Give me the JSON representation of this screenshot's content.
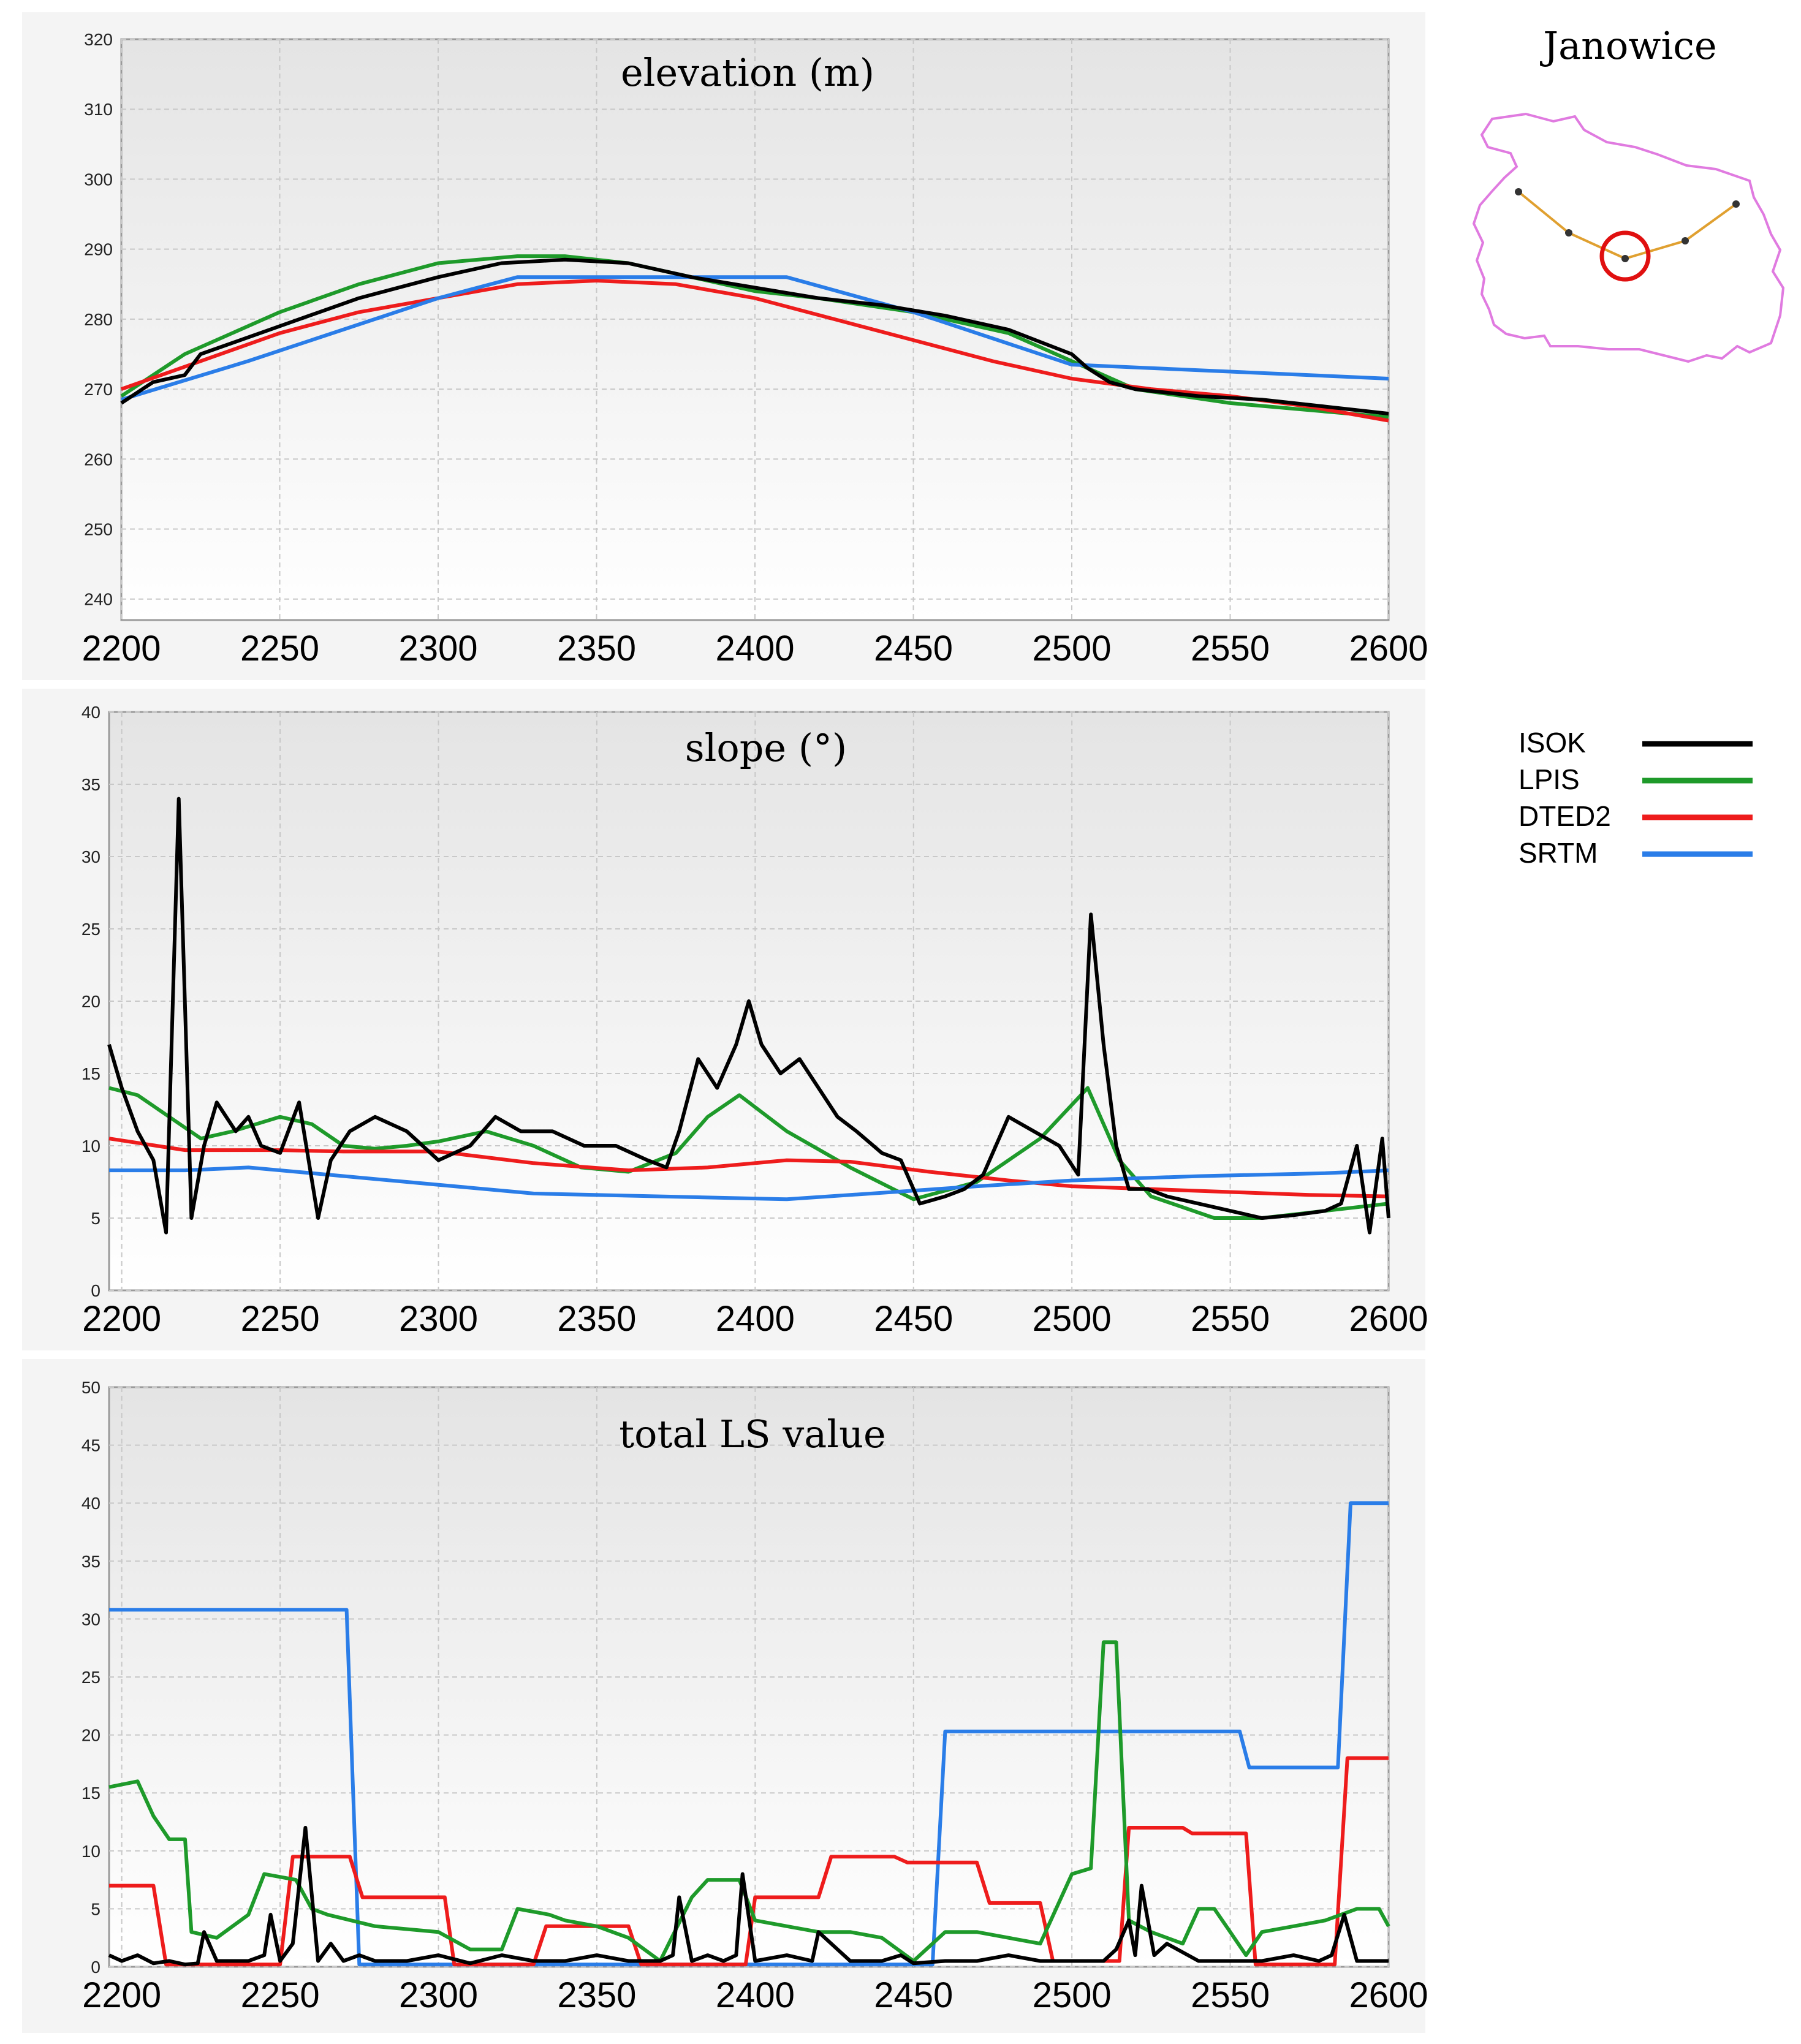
{
  "location": {
    "title": "Janowice",
    "colors": {
      "boundary": "#e07be0",
      "transect": "#e0a030",
      "highlight": "#e01010",
      "points": "#333333"
    }
  },
  "legend": [
    {
      "label": "ISOK",
      "color": "#000000"
    },
    {
      "label": "LPIS",
      "color": "#1e9a2a"
    },
    {
      "label": "DTED2",
      "color": "#ee1c1c"
    },
    {
      "label": "SRTM",
      "color": "#2a7de8"
    }
  ],
  "chart_data": [
    {
      "type": "line",
      "title": "elevation (m)",
      "xlabel": "",
      "ylabel": "",
      "xlim": [
        2200,
        2600
      ],
      "ylim": [
        237,
        320
      ],
      "xticks": [
        2200,
        2250,
        2300,
        2350,
        2400,
        2450,
        2500,
        2550,
        2600
      ],
      "yticks": [
        240,
        250,
        260,
        270,
        280,
        290,
        300,
        310,
        320
      ],
      "grid": true,
      "series": [
        {
          "name": "LPIS",
          "color": "#1e9a2a",
          "x": [
            2200,
            2220,
            2250,
            2275,
            2300,
            2325,
            2340,
            2360,
            2380,
            2400,
            2420,
            2450,
            2480,
            2500,
            2520,
            2550,
            2600
          ],
          "y": [
            269,
            275,
            281,
            285,
            288,
            289,
            289,
            288,
            286,
            284,
            283,
            281,
            278,
            274,
            270,
            268,
            266
          ]
        },
        {
          "name": "DTED2",
          "color": "#ee1c1c",
          "x": [
            2200,
            2225,
            2250,
            2275,
            2300,
            2325,
            2350,
            2375,
            2400,
            2425,
            2450,
            2475,
            2500,
            2525,
            2550,
            2575,
            2600
          ],
          "y": [
            270,
            274,
            278,
            281,
            283,
            285,
            285.5,
            285,
            283,
            280,
            277,
            274,
            271.5,
            270,
            269,
            267.5,
            265.5
          ]
        },
        {
          "name": "SRTM",
          "color": "#2a7de8",
          "x": [
            2200,
            2240,
            2280,
            2300,
            2325,
            2410,
            2450,
            2500,
            2550,
            2600
          ],
          "y": [
            268.5,
            274,
            280,
            283,
            286,
            286,
            281,
            273.5,
            272.5,
            271.5
          ]
        },
        {
          "name": "ISOK",
          "color": "#000000",
          "x": [
            2200,
            2210,
            2220,
            2225,
            2250,
            2275,
            2300,
            2320,
            2340,
            2360,
            2380,
            2400,
            2420,
            2440,
            2460,
            2480,
            2500,
            2505,
            2512,
            2520,
            2540,
            2560,
            2580,
            2600
          ],
          "y": [
            268,
            271,
            272,
            275,
            279,
            283,
            286,
            288,
            288.5,
            288,
            286,
            284.5,
            283,
            282,
            280.5,
            278.5,
            275,
            273,
            271,
            270,
            269,
            268.5,
            267.5,
            266.5
          ]
        }
      ]
    },
    {
      "type": "line",
      "title": "slope (°)",
      "xlabel": "",
      "ylabel": "",
      "xlim": [
        2196,
        2600
      ],
      "ylim": [
        0,
        40
      ],
      "xticks": [
        2200,
        2250,
        2300,
        2350,
        2400,
        2450,
        2500,
        2550,
        2600
      ],
      "yticks": [
        0,
        5,
        10,
        15,
        20,
        25,
        30,
        35,
        40
      ],
      "grid": true,
      "series": [
        {
          "name": "LPIS",
          "color": "#1e9a2a",
          "x": [
            2196,
            2205,
            2215,
            2225,
            2235,
            2250,
            2260,
            2270,
            2280,
            2290,
            2300,
            2315,
            2330,
            2345,
            2360,
            2375,
            2385,
            2395,
            2410,
            2430,
            2450,
            2470,
            2490,
            2505,
            2515,
            2525,
            2545,
            2560,
            2580,
            2600
          ],
          "y": [
            14,
            13.5,
            12,
            10.5,
            11,
            12,
            11.5,
            10,
            9.8,
            10,
            10.3,
            11,
            10,
            8.5,
            8.2,
            9.5,
            12,
            13.5,
            11,
            8.5,
            6.3,
            7.5,
            10.5,
            14,
            9,
            6.5,
            5,
            5,
            5.5,
            6
          ]
        },
        {
          "name": "DTED2",
          "color": "#ee1c1c",
          "x": [
            2196,
            2220,
            2250,
            2270,
            2300,
            2330,
            2360,
            2385,
            2410,
            2430,
            2455,
            2480,
            2500,
            2525,
            2550,
            2575,
            2600
          ],
          "y": [
            10.5,
            9.7,
            9.7,
            9.6,
            9.6,
            8.8,
            8.3,
            8.5,
            9,
            8.9,
            8.2,
            7.6,
            7.2,
            7,
            6.8,
            6.6,
            6.5
          ]
        },
        {
          "name": "SRTM",
          "color": "#2a7de8",
          "x": [
            2196,
            2220,
            2240,
            2260,
            2290,
            2330,
            2370,
            2410,
            2450,
            2470,
            2500,
            2540,
            2580,
            2600
          ],
          "y": [
            8.3,
            8.3,
            8.5,
            8.1,
            7.5,
            6.7,
            6.5,
            6.3,
            6.9,
            7.2,
            7.6,
            7.9,
            8.1,
            8.3
          ]
        },
        {
          "name": "ISOK",
          "color": "#000000",
          "x": [
            2196,
            2200,
            2205,
            2210,
            2214,
            2218,
            2222,
            2226,
            2230,
            2236,
            2240,
            2244,
            2250,
            2256,
            2262,
            2266,
            2272,
            2280,
            2290,
            2300,
            2310,
            2318,
            2326,
            2336,
            2346,
            2356,
            2366,
            2372,
            2376,
            2382,
            2388,
            2394,
            2398,
            2402,
            2408,
            2414,
            2420,
            2426,
            2432,
            2440,
            2446,
            2452,
            2460,
            2466,
            2472,
            2480,
            2488,
            2496,
            2502,
            2506,
            2510,
            2514,
            2518,
            2524,
            2530,
            2540,
            2550,
            2560,
            2570,
            2580,
            2585,
            2590,
            2594,
            2598,
            2600
          ],
          "y": [
            17,
            14,
            11,
            9,
            4,
            34,
            5,
            10,
            13,
            11,
            12,
            10,
            9.5,
            13,
            5,
            9,
            11,
            12,
            11,
            9,
            10,
            12,
            11,
            11,
            10,
            10,
            9,
            8.5,
            11,
            16,
            14,
            17,
            20,
            17,
            15,
            16,
            14,
            12,
            11,
            9.5,
            9,
            6,
            6.5,
            7,
            8,
            12,
            11,
            10,
            8,
            26,
            17,
            10,
            7,
            7,
            6.5,
            6,
            5.5,
            5,
            5.2,
            5.5,
            6,
            10,
            4,
            10.5,
            5
          ]
        }
      ]
    },
    {
      "type": "line",
      "title": "total LS value",
      "xlabel": "",
      "ylabel": "",
      "xlim": [
        2196,
        2600
      ],
      "ylim": [
        0,
        50
      ],
      "xticks": [
        2200,
        2250,
        2300,
        2350,
        2400,
        2450,
        2500,
        2550,
        2600
      ],
      "yticks": [
        0,
        5,
        10,
        15,
        20,
        25,
        30,
        35,
        40,
        45,
        50
      ],
      "grid": true,
      "series": [
        {
          "name": "SRTM",
          "color": "#2a7de8",
          "x": [
            2196,
            2271,
            2275,
            2456,
            2460,
            2553,
            2556,
            2584,
            2588,
            2600
          ],
          "y": [
            30.8,
            30.8,
            0.2,
            0.2,
            20.3,
            20.3,
            17.2,
            17.2,
            40,
            40
          ]
        },
        {
          "name": "DTED2",
          "color": "#ee1c1c",
          "x": [
            2196,
            2210,
            2214,
            2250,
            2254,
            2272,
            2276,
            2302,
            2305,
            2330,
            2334,
            2360,
            2364,
            2397,
            2400,
            2420,
            2424,
            2444,
            2448,
            2470,
            2474,
            2490,
            2494,
            2515,
            2518,
            2535,
            2538,
            2555,
            2558,
            2583,
            2587,
            2600
          ],
          "y": [
            7,
            7,
            0.2,
            0.2,
            9.5,
            9.5,
            6,
            6,
            0.2,
            0.2,
            3.5,
            3.5,
            0.2,
            0.2,
            6,
            6,
            9.5,
            9.5,
            9,
            9,
            5.5,
            5.5,
            0.5,
            0.5,
            12,
            12,
            11.5,
            11.5,
            0.2,
            0.2,
            18,
            18
          ]
        },
        {
          "name": "LPIS",
          "color": "#1e9a2a",
          "x": [
            2196,
            2205,
            2210,
            2215,
            2220,
            2222,
            2230,
            2240,
            2245,
            2255,
            2260,
            2265,
            2280,
            2300,
            2310,
            2320,
            2325,
            2335,
            2340,
            2350,
            2360,
            2370,
            2380,
            2385,
            2395,
            2400,
            2410,
            2420,
            2430,
            2440,
            2450,
            2460,
            2470,
            2490,
            2500,
            2506,
            2510,
            2514,
            2518,
            2525,
            2530,
            2535,
            2540,
            2545,
            2550,
            2555,
            2560,
            2570,
            2580,
            2590,
            2597,
            2600
          ],
          "y": [
            15.5,
            16,
            13,
            11,
            11,
            3,
            2.5,
            4.5,
            8,
            7.5,
            5,
            4.5,
            3.5,
            3,
            1.5,
            1.5,
            5,
            4.5,
            4,
            3.5,
            2.5,
            0.5,
            6,
            7.5,
            7.5,
            4,
            3.5,
            3,
            3,
            2.5,
            0.5,
            3,
            3,
            2,
            8,
            8.5,
            28,
            28,
            4,
            3,
            2.5,
            2,
            5,
            5,
            3,
            1,
            3,
            3.5,
            4,
            5,
            5,
            3.5
          ]
        },
        {
          "name": "ISOK",
          "color": "#000000",
          "x": [
            2196,
            2200,
            2205,
            2210,
            2215,
            2220,
            2224,
            2226,
            2230,
            2240,
            2245,
            2247,
            2250,
            2254,
            2258,
            2262,
            2266,
            2270,
            2275,
            2280,
            2290,
            2300,
            2310,
            2320,
            2330,
            2340,
            2350,
            2360,
            2370,
            2374,
            2376,
            2380,
            2385,
            2390,
            2394,
            2396,
            2400,
            2410,
            2418,
            2420,
            2430,
            2440,
            2446,
            2450,
            2460,
            2470,
            2480,
            2490,
            2500,
            2510,
            2514,
            2518,
            2520,
            2522,
            2526,
            2530,
            2540,
            2550,
            2560,
            2570,
            2578,
            2582,
            2586,
            2590,
            2595,
            2600
          ],
          "y": [
            1,
            0.5,
            1,
            0.3,
            0.5,
            0.2,
            0.3,
            3,
            0.5,
            0.5,
            1,
            4.5,
            0.5,
            2,
            12,
            0.5,
            2,
            0.5,
            1,
            0.5,
            0.5,
            1,
            0.3,
            1,
            0.5,
            0.5,
            1,
            0.5,
            0.5,
            1,
            6,
            0.5,
            1,
            0.5,
            1,
            8,
            0.5,
            1,
            0.5,
            3,
            0.5,
            0.5,
            1,
            0.3,
            0.5,
            0.5,
            1,
            0.5,
            0.5,
            0.5,
            1.5,
            4,
            1,
            7,
            1,
            2,
            0.5,
            0.5,
            0.5,
            1,
            0.5,
            1,
            4.5,
            0.5,
            0.5,
            0.5
          ]
        }
      ]
    }
  ]
}
